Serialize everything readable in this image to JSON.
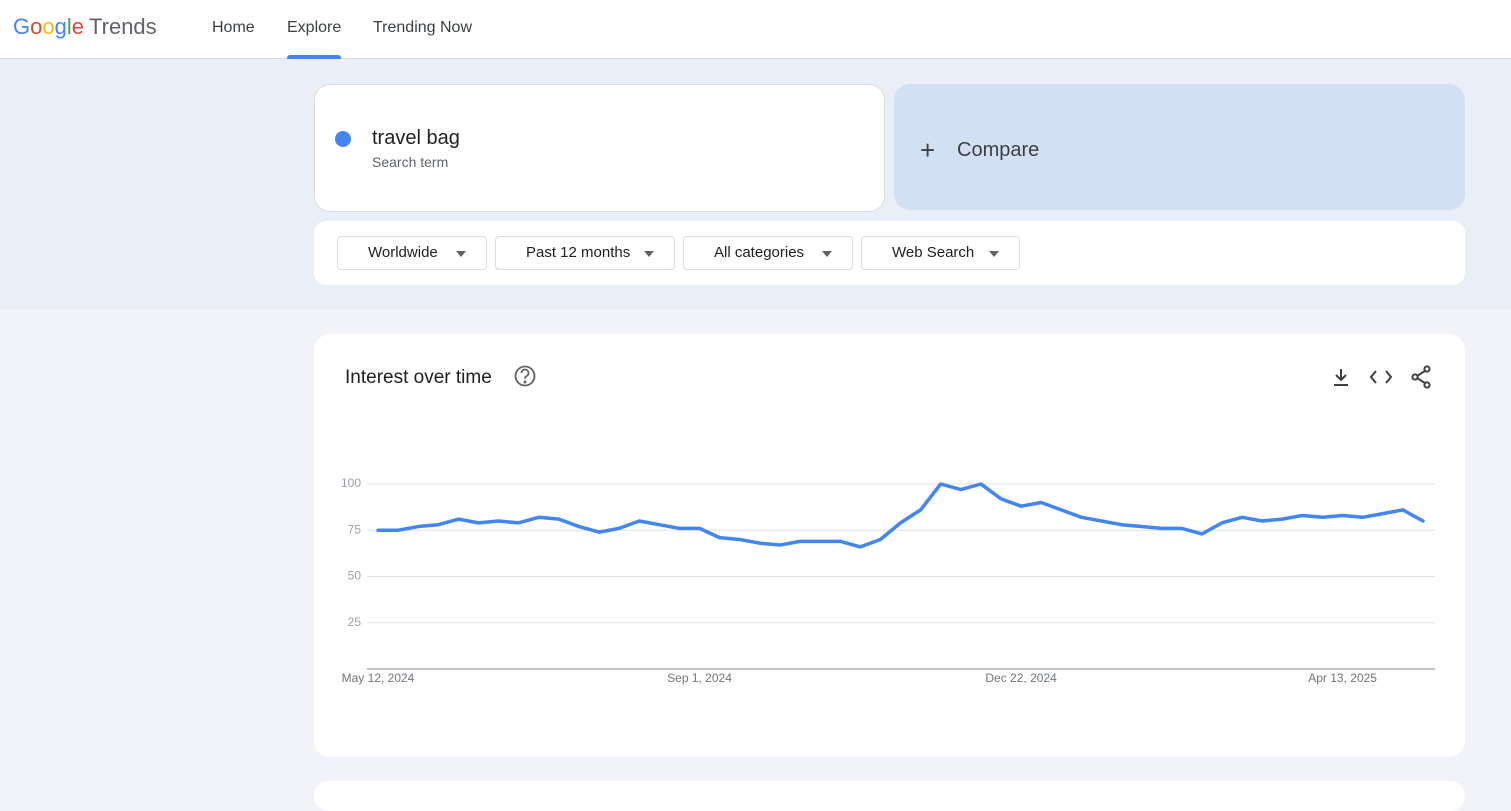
{
  "header": {
    "logo_brand": "Google",
    "logo_product": "Trends",
    "nav": [
      "Home",
      "Explore",
      "Trending Now"
    ]
  },
  "search": {
    "term": "travel bag",
    "term_type": "Search term",
    "compare": "Compare"
  },
  "filters": [
    "Worldwide",
    "Past 12 months",
    "All categories",
    "Web Search"
  ],
  "chart_data": {
    "type": "line",
    "title": "Interest over time",
    "categories": [
      "May 12, 2024",
      null,
      null,
      null,
      null,
      null,
      null,
      null,
      null,
      null,
      null,
      null,
      null,
      null,
      null,
      null,
      "Sep 1, 2024",
      null,
      null,
      null,
      null,
      null,
      null,
      null,
      null,
      null,
      null,
      null,
      null,
      null,
      null,
      null,
      "Dec 22, 2024",
      null,
      null,
      null,
      null,
      null,
      null,
      null,
      null,
      null,
      null,
      null,
      null,
      null,
      null,
      null,
      "Apr 13, 2025",
      null,
      null,
      null,
      null
    ],
    "values": [
      75,
      75,
      77,
      78,
      81,
      79,
      80,
      79,
      82,
      81,
      77,
      74,
      76,
      80,
      78,
      76,
      76,
      71,
      70,
      68,
      67,
      69,
      69,
      69,
      66,
      70,
      79,
      86,
      100,
      97,
      100,
      92,
      88,
      90,
      86,
      82,
      80,
      78,
      77,
      76,
      76,
      73,
      79,
      82,
      80,
      81,
      83,
      82,
      83,
      82,
      84,
      86,
      80
    ],
    "color": "#4285f4",
    "ylim": [
      0,
      100
    ],
    "yticks": [
      25,
      50,
      75,
      100
    ],
    "grid": true
  }
}
